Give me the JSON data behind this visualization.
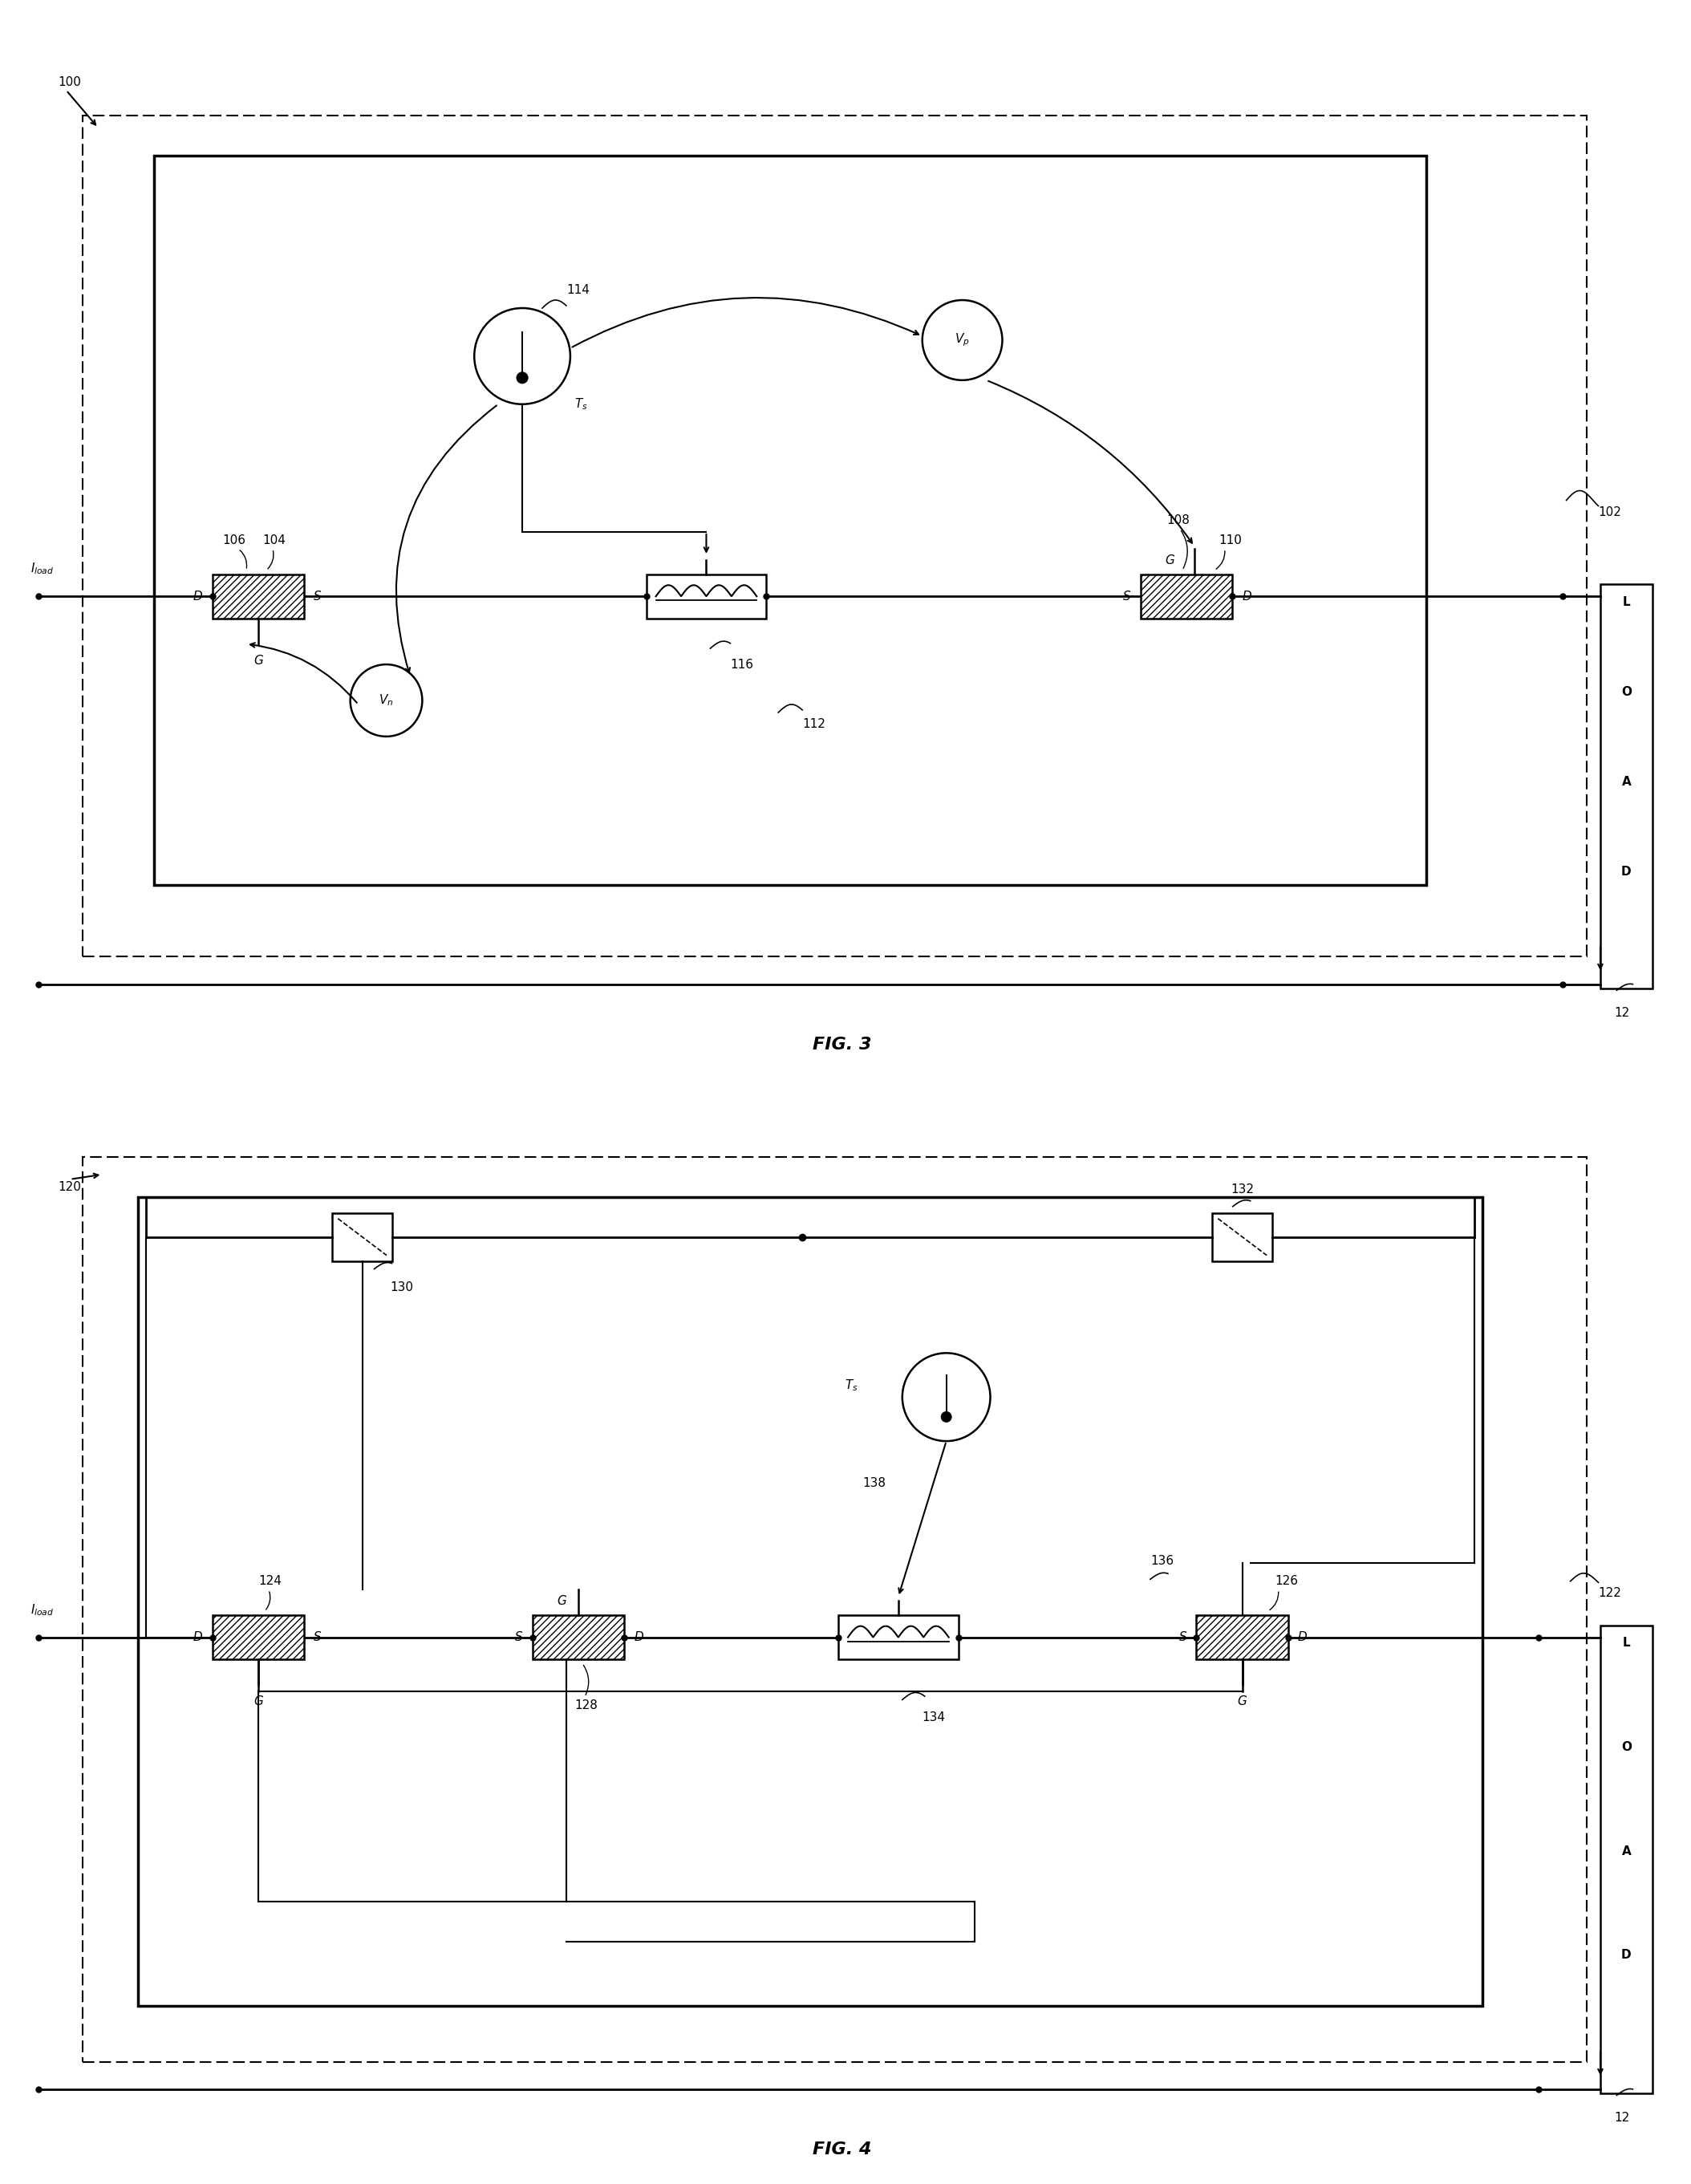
{
  "fig_width": 21.08,
  "fig_height": 27.22,
  "bg_color": "#ffffff",
  "fig3_title": "FIG. 3",
  "fig4_title": "FIG. 4",
  "fig3": {
    "outer_label": "100",
    "inner_label": "102",
    "mosfet_left_num": "104",
    "mosfet_left_G_num": "106",
    "mosfet_right_num": "110",
    "mosfet_right_G_num": "108",
    "inductor_num": "116",
    "inductor_label": "112",
    "therm_num": "114",
    "Ts": "T_s",
    "Vp": "V_p",
    "Vn": "V_n",
    "load": "12",
    "iload": "I_{load}"
  },
  "fig4": {
    "outer_label": "120",
    "inner_label": "122",
    "mosfet_left_num": "124",
    "mosfet_mid_num": "128",
    "mosfet_right_num": "126",
    "inductor_num": "134",
    "therm_num": "138",
    "Ts": "T_s",
    "switch_left_num": "130",
    "switch_right_num": "132",
    "connect_num": "136",
    "load": "12",
    "iload": "I_{load}"
  }
}
